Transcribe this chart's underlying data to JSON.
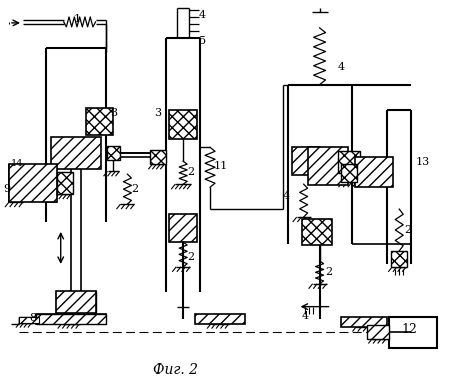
{
  "title": "Фиг. 2",
  "bg_color": "#ffffff",
  "fig_width": 4.5,
  "fig_height": 3.81,
  "dpi": 100
}
